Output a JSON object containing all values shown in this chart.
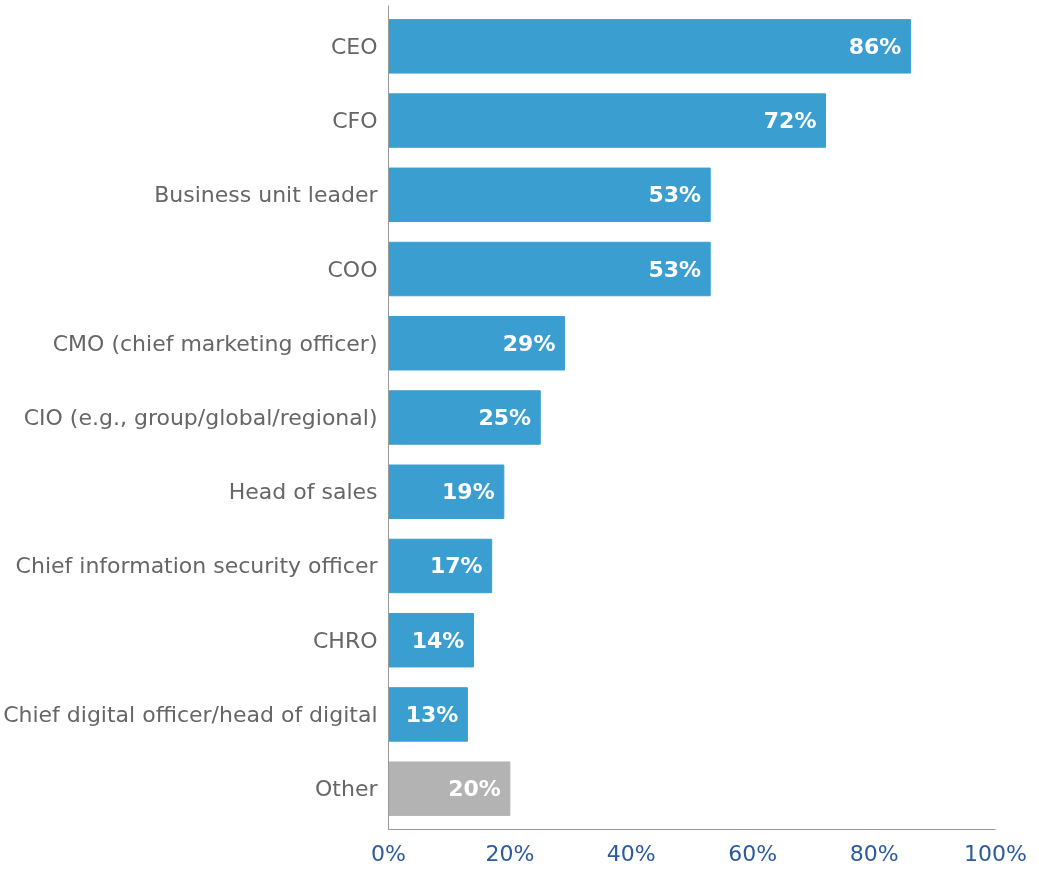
{
  "chart_data": {
    "type": "bar",
    "orientation": "horizontal",
    "categories": [
      "CEO",
      "CFO",
      "Business unit leader",
      "COO",
      "CMO (chief marketing officer)",
      "CIO (e.g., group/global/regional)",
      "Head of sales",
      "Chief information security officer",
      "CHRO",
      "Chief digital officer/head of digital",
      "Other"
    ],
    "values": [
      86,
      72,
      53,
      53,
      29,
      25,
      19,
      17,
      14,
      13,
      20
    ],
    "colors": [
      "#3a9fd0",
      "#3a9fd0",
      "#3a9fd0",
      "#3a9fd0",
      "#3a9fd0",
      "#3a9fd0",
      "#3a9fd0",
      "#3a9fd0",
      "#3a9fd0",
      "#3a9fd0",
      "#b3b3b3"
    ],
    "value_labels": [
      "86%",
      "72%",
      "53%",
      "53%",
      "29%",
      "25%",
      "19%",
      "17%",
      "14%",
      "13%",
      "20%"
    ],
    "xlim": [
      0,
      100
    ],
    "xticks": [
      {
        "value": 0,
        "label": "0%"
      },
      {
        "value": 20,
        "label": "20%"
      },
      {
        "value": 40,
        "label": "40%"
      },
      {
        "value": 60,
        "label": "60%"
      },
      {
        "value": 80,
        "label": "80%"
      },
      {
        "value": 100,
        "label": "100%"
      }
    ],
    "grid": false
  }
}
